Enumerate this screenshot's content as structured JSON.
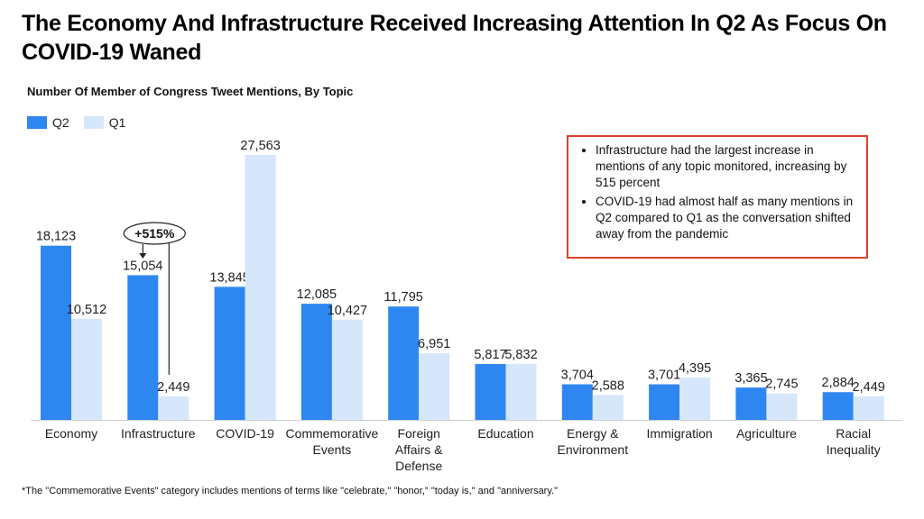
{
  "title": "The Economy And Infrastructure Received Increasing Attention In Q2 As Focus On COVID-19 Waned",
  "subtitle": "Number Of  Member of Congress Tweet Mentions, By Topic",
  "legend": [
    {
      "name": "Q2",
      "color": "#2e86f0"
    },
    {
      "name": "Q1",
      "color": "#d6e6fb"
    }
  ],
  "callout": {
    "bullets": [
      "Infrastructure had the largest increase in mentions of any topic monitored, increasing by 515 percent",
      "COVID-19 had almost half as many mentions in Q2 compared to Q1 as the conversation shifted away from the pandemic"
    ]
  },
  "footnote": "*The \"Commemorative Events\" category includes mentions of terms like \"celebrate,\" \"honor,\" \"today is,\" and \"anniversary.\"",
  "chart_data": {
    "type": "bar",
    "title": "",
    "xlabel": "",
    "ylabel": "",
    "ylim": [
      0,
      30000
    ],
    "grid": false,
    "legend_position": "top-left",
    "categories": [
      "Economy",
      "Infrastructure",
      "COVID-19",
      "Commemorative Events",
      "Foreign Affairs & Defense",
      "Education",
      "Energy & Environment",
      "Immigration",
      "Agriculture",
      "Racial Inequality"
    ],
    "category_lines": [
      [
        "Economy"
      ],
      [
        "Infrastructure"
      ],
      [
        "COVID-19"
      ],
      [
        "Commemorative",
        "Events"
      ],
      [
        "Foreign",
        "Affairs &",
        "Defense"
      ],
      [
        "Education"
      ],
      [
        "Energy &",
        "Environment"
      ],
      [
        "Immigration"
      ],
      [
        "Agriculture"
      ],
      [
        "Racial",
        "Inequality"
      ]
    ],
    "series": [
      {
        "name": "Q2",
        "color": "#2e86f0",
        "values": [
          18123,
          15054,
          13845,
          12085,
          11795,
          5817,
          3704,
          3701,
          3365,
          2884
        ]
      },
      {
        "name": "Q1",
        "color": "#d6e6fb",
        "values": [
          10512,
          2449,
          27563,
          10427,
          6951,
          5832,
          2588,
          4395,
          2745,
          2449
        ]
      }
    ],
    "annotations": [
      {
        "text": "+515%",
        "category": "Infrastructure"
      }
    ]
  }
}
